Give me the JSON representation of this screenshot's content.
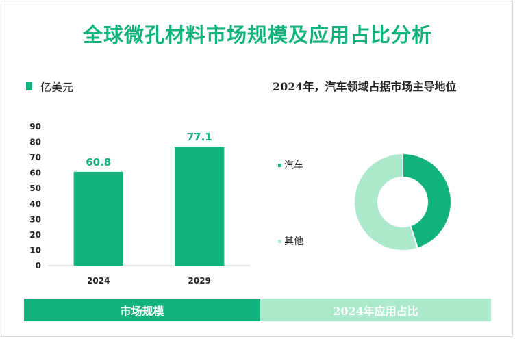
{
  "title": "全球微孔材料市场规模及应用占比分析",
  "legend_label": "亿美元",
  "pie_title": "2024年，汽车领域占据市场主导地位",
  "footer": {
    "left": "市场规模",
    "right": "2024年应用占比"
  },
  "colors": {
    "accent": "#12b27d",
    "light": "#ace8cb"
  },
  "chart_data": [
    {
      "type": "bar",
      "title": "",
      "categories": [
        "2024",
        "2029"
      ],
      "values": [
        60.8,
        77.1
      ],
      "yticks": [
        0,
        10,
        20,
        30,
        40,
        50,
        60,
        70,
        80,
        90
      ],
      "ylim": [
        0,
        90
      ],
      "xlabel": "",
      "ylabel": "",
      "series_name": "亿美元",
      "grid": false
    },
    {
      "type": "pie",
      "title": "2024年，汽车领域占据市场主导地位",
      "labels": [
        "汽车",
        "其他"
      ],
      "values": [
        45,
        55
      ],
      "colors": [
        "#12b27d",
        "#ace8cb"
      ],
      "donut": true
    }
  ]
}
